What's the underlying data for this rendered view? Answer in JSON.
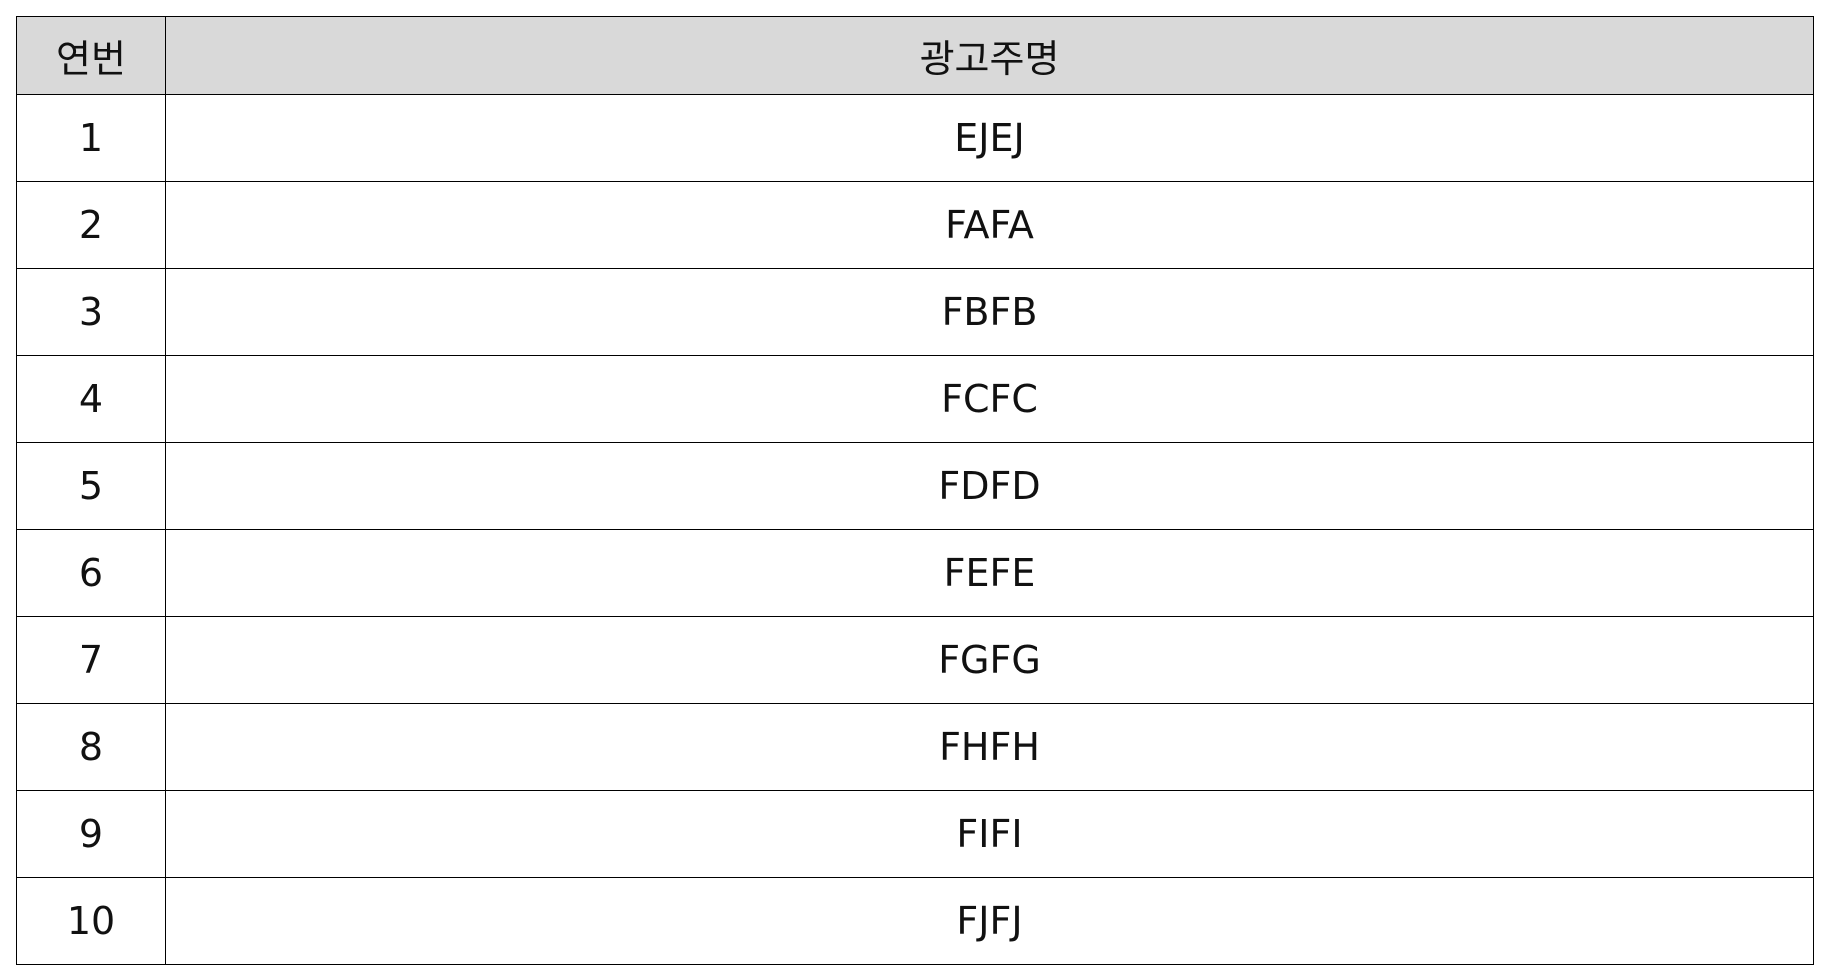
{
  "table": {
    "headers": {
      "no": "연번",
      "name": "광고주명"
    },
    "rows": [
      {
        "no": "1",
        "name": "EJEJ"
      },
      {
        "no": "2",
        "name": "FAFA"
      },
      {
        "no": "3",
        "name": "FBFB"
      },
      {
        "no": "4",
        "name": "FCFC"
      },
      {
        "no": "5",
        "name": "FDFD"
      },
      {
        "no": "6",
        "name": "FEFE"
      },
      {
        "no": "7",
        "name": "FGFG"
      },
      {
        "no": "8",
        "name": "FHFH"
      },
      {
        "no": "9",
        "name": "FIFI"
      },
      {
        "no": "10",
        "name": "FJFJ"
      }
    ]
  }
}
